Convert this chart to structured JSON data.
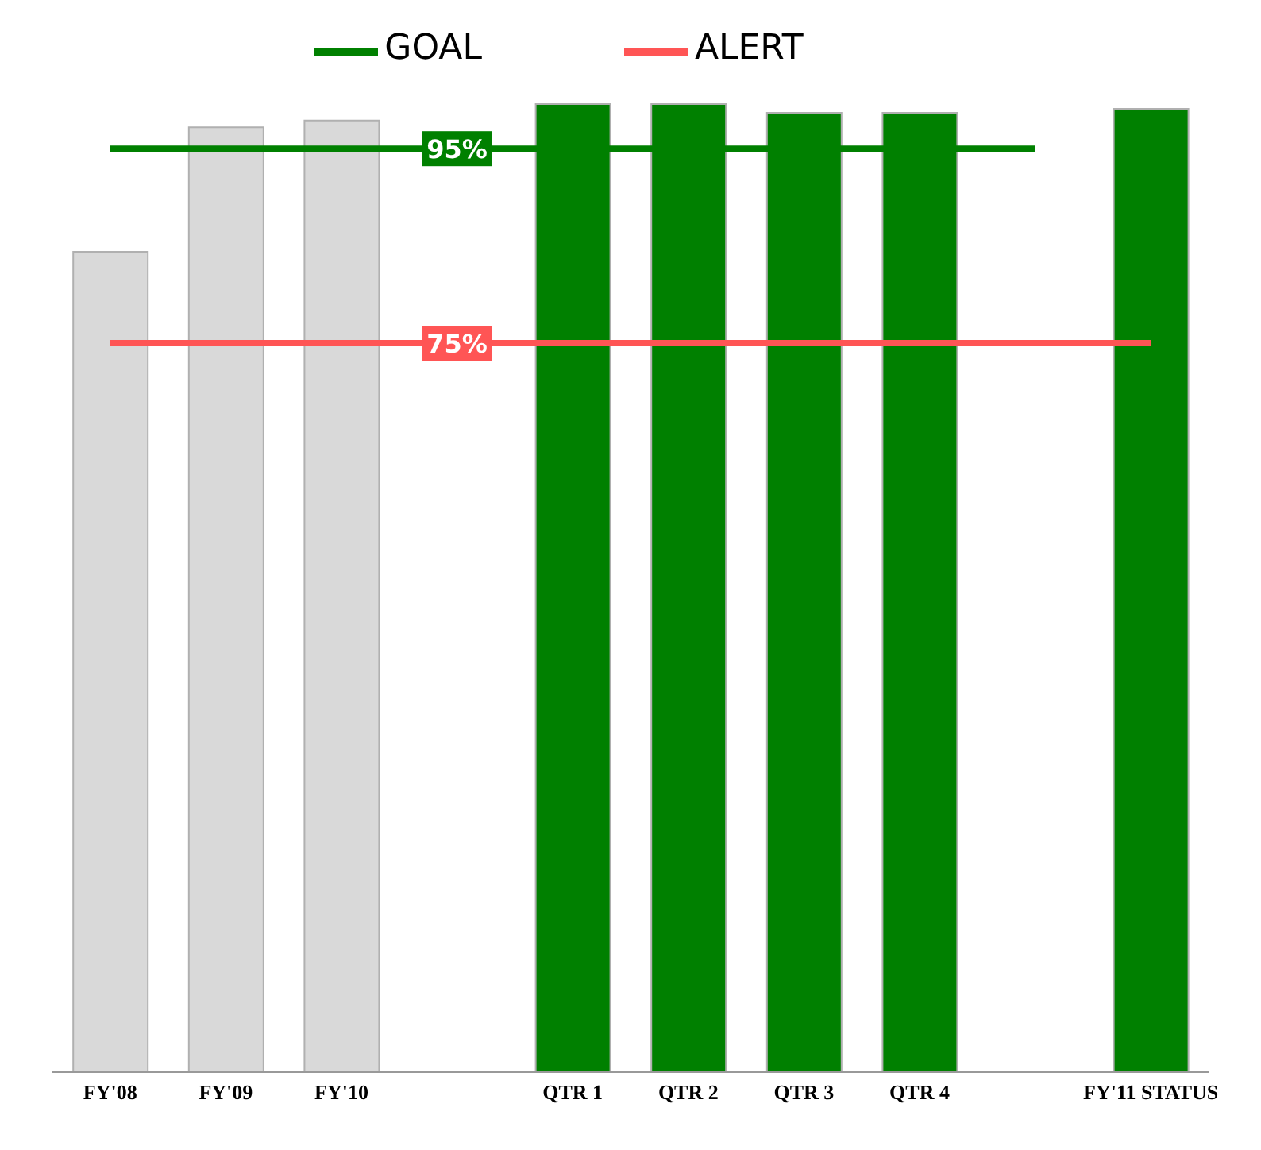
{
  "chart_data": {
    "type": "bar",
    "categories": [
      "FY'08",
      "FY'09",
      "FY'10",
      null,
      "QTR 1",
      "QTR 2",
      "QTR 3",
      "QTR 4",
      null,
      "FY'11 STATUS"
    ],
    "series": [
      {
        "colors": [
          "#d9d9d9",
          "#d9d9d9",
          "#d9d9d9",
          "#d9d9d9",
          "#008000",
          "#008000",
          "#008000",
          "#008000",
          "#008000",
          "#008000"
        ],
        "values": [
          84.4,
          97.2,
          97.9,
          null,
          99.6,
          99.6,
          98.7,
          98.7,
          null,
          99.1
        ]
      },
      {
        "type": "line",
        "name": "GOAL",
        "color": "#008000",
        "values": [
          95,
          95,
          95,
          95,
          95,
          95,
          95,
          95,
          95,
          null
        ],
        "value_labels": [
          null,
          null,
          null,
          "95%",
          null,
          null,
          null,
          null,
          null,
          null
        ]
      },
      {
        "type": "line",
        "name": "ALERT",
        "color": "#ff5555",
        "values": [
          75,
          75,
          75,
          75,
          75,
          75,
          75,
          75,
          75,
          75
        ],
        "value_labels": [
          null,
          null,
          null,
          "75%",
          null,
          null,
          null,
          null,
          null,
          null
        ]
      }
    ],
    "tick_labels": "x",
    "grid": false,
    "legend": "top",
    "marker": "none",
    "line_style": "solid"
  }
}
